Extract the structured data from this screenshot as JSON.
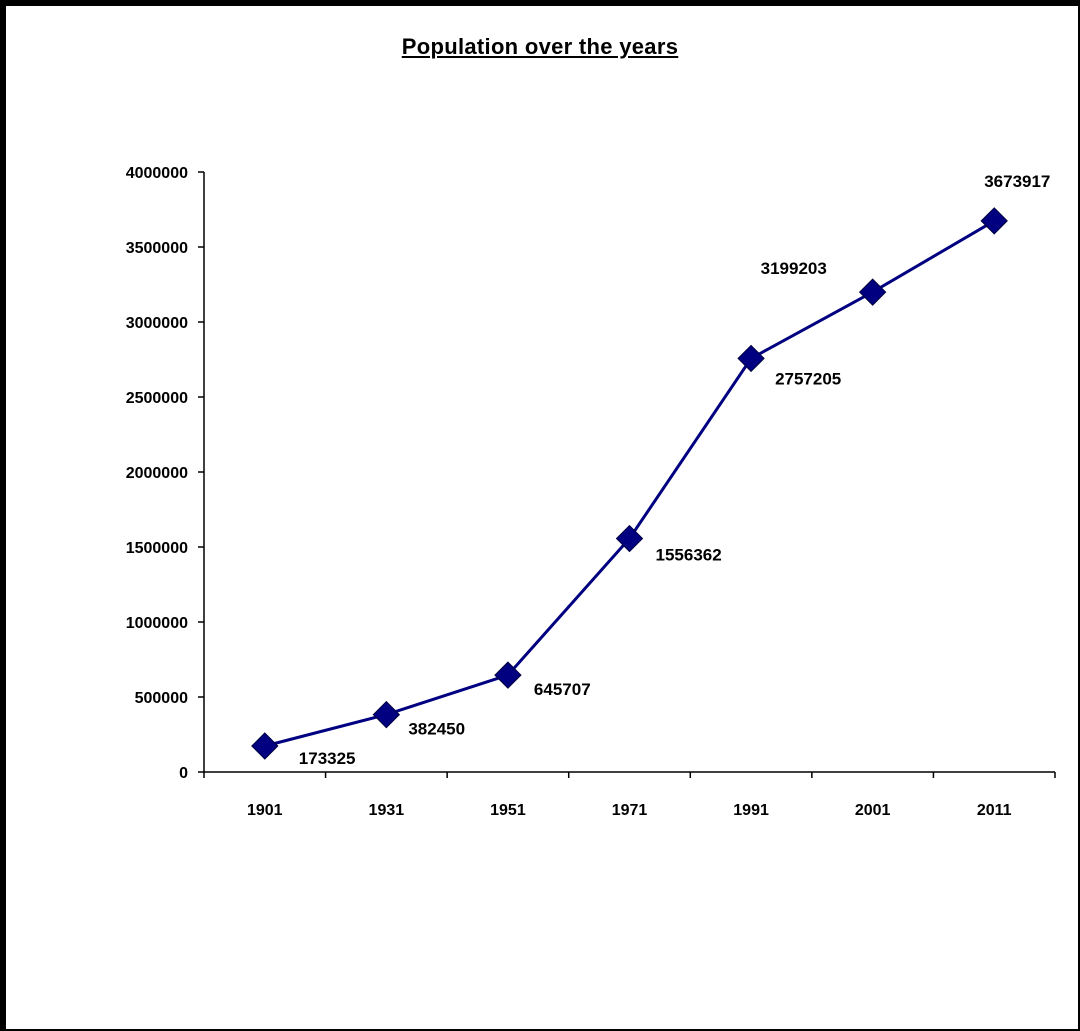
{
  "chart_data": {
    "type": "line",
    "title": "Population over the years",
    "xlabel": "",
    "ylabel": "",
    "categories": [
      "1901",
      "1931",
      "1951",
      "1971",
      "1991",
      "2001",
      "2011"
    ],
    "series": [
      {
        "values": [
          173325,
          382450,
          645707,
          1556362,
          2757205,
          3199203,
          3673917
        ]
      }
    ],
    "data_labels": [
      "173325",
      "382450",
      "645707",
      "1556362",
      "2757205",
      "3199203",
      "3673917"
    ],
    "y_ticks": [
      0,
      500000,
      1000000,
      1500000,
      2000000,
      2500000,
      3000000,
      3500000,
      4000000
    ],
    "y_tick_labels": [
      "0",
      "500000",
      "1000000",
      "1500000",
      "2000000",
      "2500000",
      "3000000",
      "3500000",
      "4000000"
    ],
    "ylim": [
      0,
      4000000
    ],
    "grid": false,
    "legend": "none",
    "colors": {
      "line": "#000080",
      "marker": "#000080"
    }
  }
}
